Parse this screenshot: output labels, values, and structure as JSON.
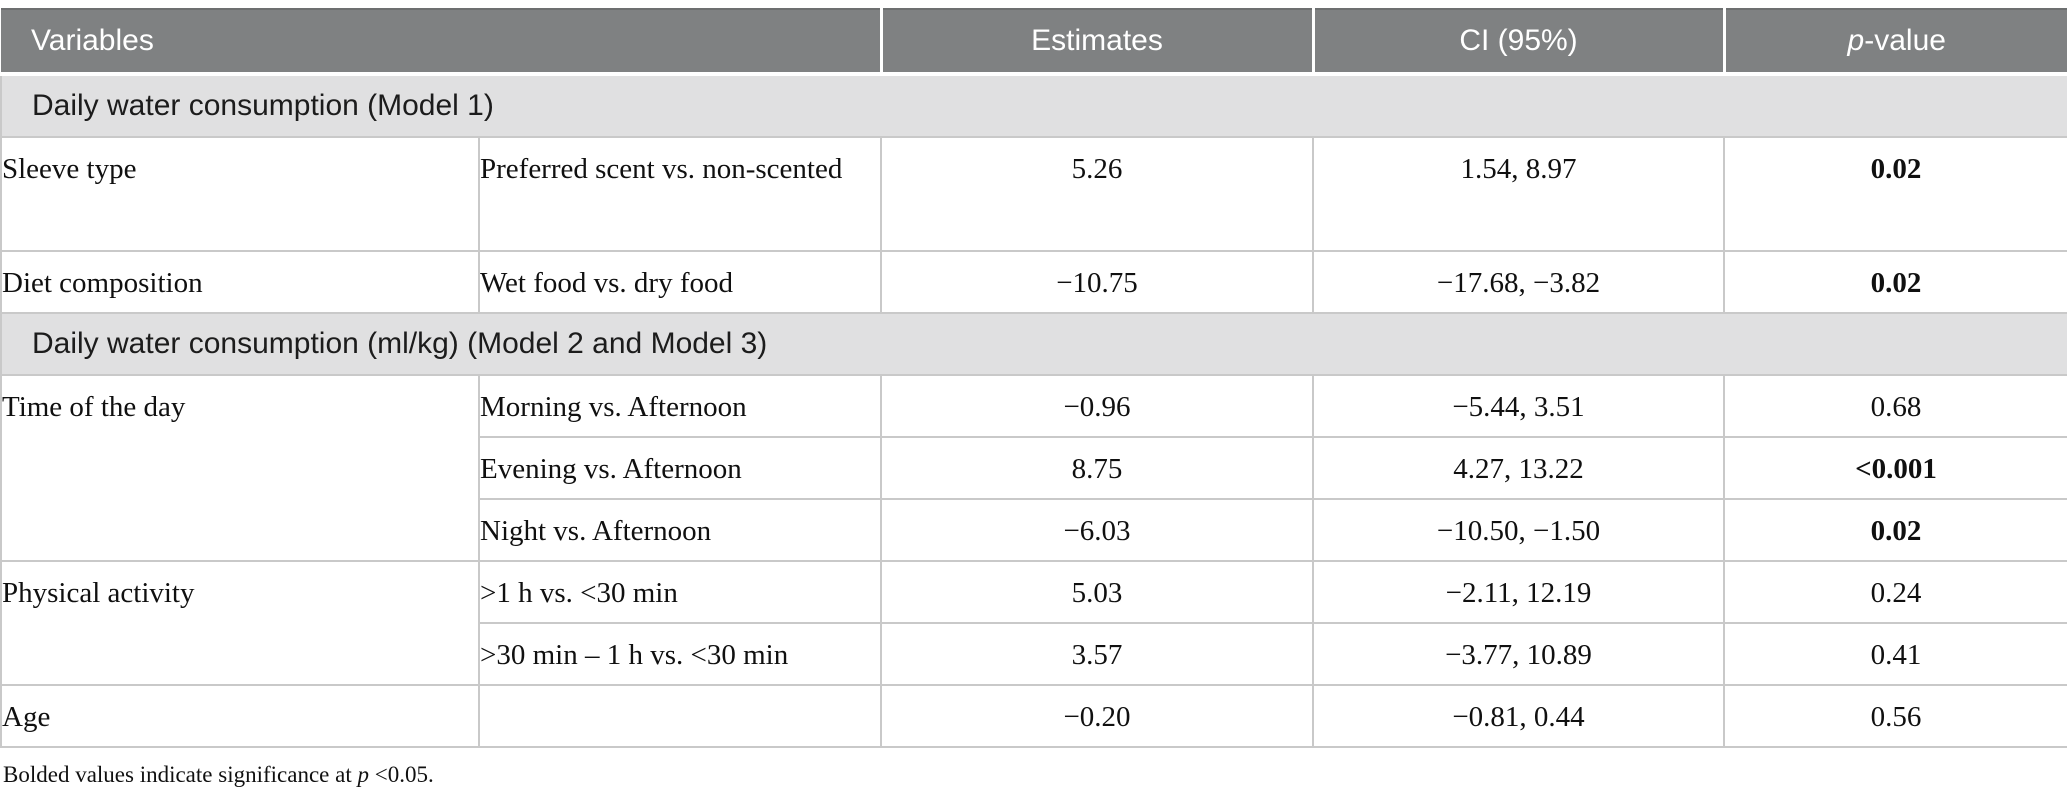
{
  "table": {
    "header": {
      "variables": "Variables",
      "estimates": "Estimates",
      "ci": "CI (95%)",
      "p_italic": "p",
      "p_rest": "-value"
    },
    "section1": {
      "title": "Daily water consumption (Model 1)"
    },
    "section2": {
      "title": "Daily water consumption (ml/kg) (Model 2 and Model 3)"
    },
    "rows": {
      "sleeve": {
        "group": "Sleeve type",
        "comparison": "Preferred scent vs. non-scented",
        "estimate": "5.26",
        "ci": "1.54, 8.97",
        "p": "0.02",
        "p_bold": true
      },
      "diet": {
        "group": "Diet composition",
        "comparison": "Wet food vs. dry food",
        "estimate": "−10.75",
        "ci": "−17.68, −3.82",
        "p": "0.02",
        "p_bold": true
      },
      "morning": {
        "group": "Time of the day",
        "comparison": "Morning vs. Afternoon",
        "estimate": "−0.96",
        "ci": "−5.44, 3.51",
        "p": "0.68",
        "p_bold": false
      },
      "evening": {
        "comparison": "Evening vs. Afternoon",
        "estimate": "8.75",
        "ci": "4.27, 13.22",
        "p": "<0.001",
        "p_bold": true
      },
      "night": {
        "comparison": "Night vs. Afternoon",
        "estimate": "−6.03",
        "ci": "−10.50, −1.50",
        "p": "0.02",
        "p_bold": true
      },
      "activity1": {
        "group": "Physical activity",
        "comparison": ">1 h vs. <30 min",
        "estimate": "5.03",
        "ci": "−2.11, 12.19",
        "p": "0.24",
        "p_bold": false
      },
      "activity2": {
        "comparison": ">30 min – 1 h vs. <30 min",
        "estimate": "3.57",
        "ci": "−3.77, 10.89",
        "p": "0.41",
        "p_bold": false
      },
      "age": {
        "group": "Age",
        "comparison": "",
        "estimate": "−0.20",
        "ci": "−0.81, 0.44",
        "p": "0.56",
        "p_bold": false
      }
    },
    "footnote": {
      "prefix": "Bolded values indicate significance at ",
      "p": "p",
      "suffix": " <0.05."
    }
  },
  "colors": {
    "header_bg": "#7f8182",
    "header_text": "#ffffff",
    "section_bg": "#e0e0e1",
    "border": "#c9c9c9"
  }
}
